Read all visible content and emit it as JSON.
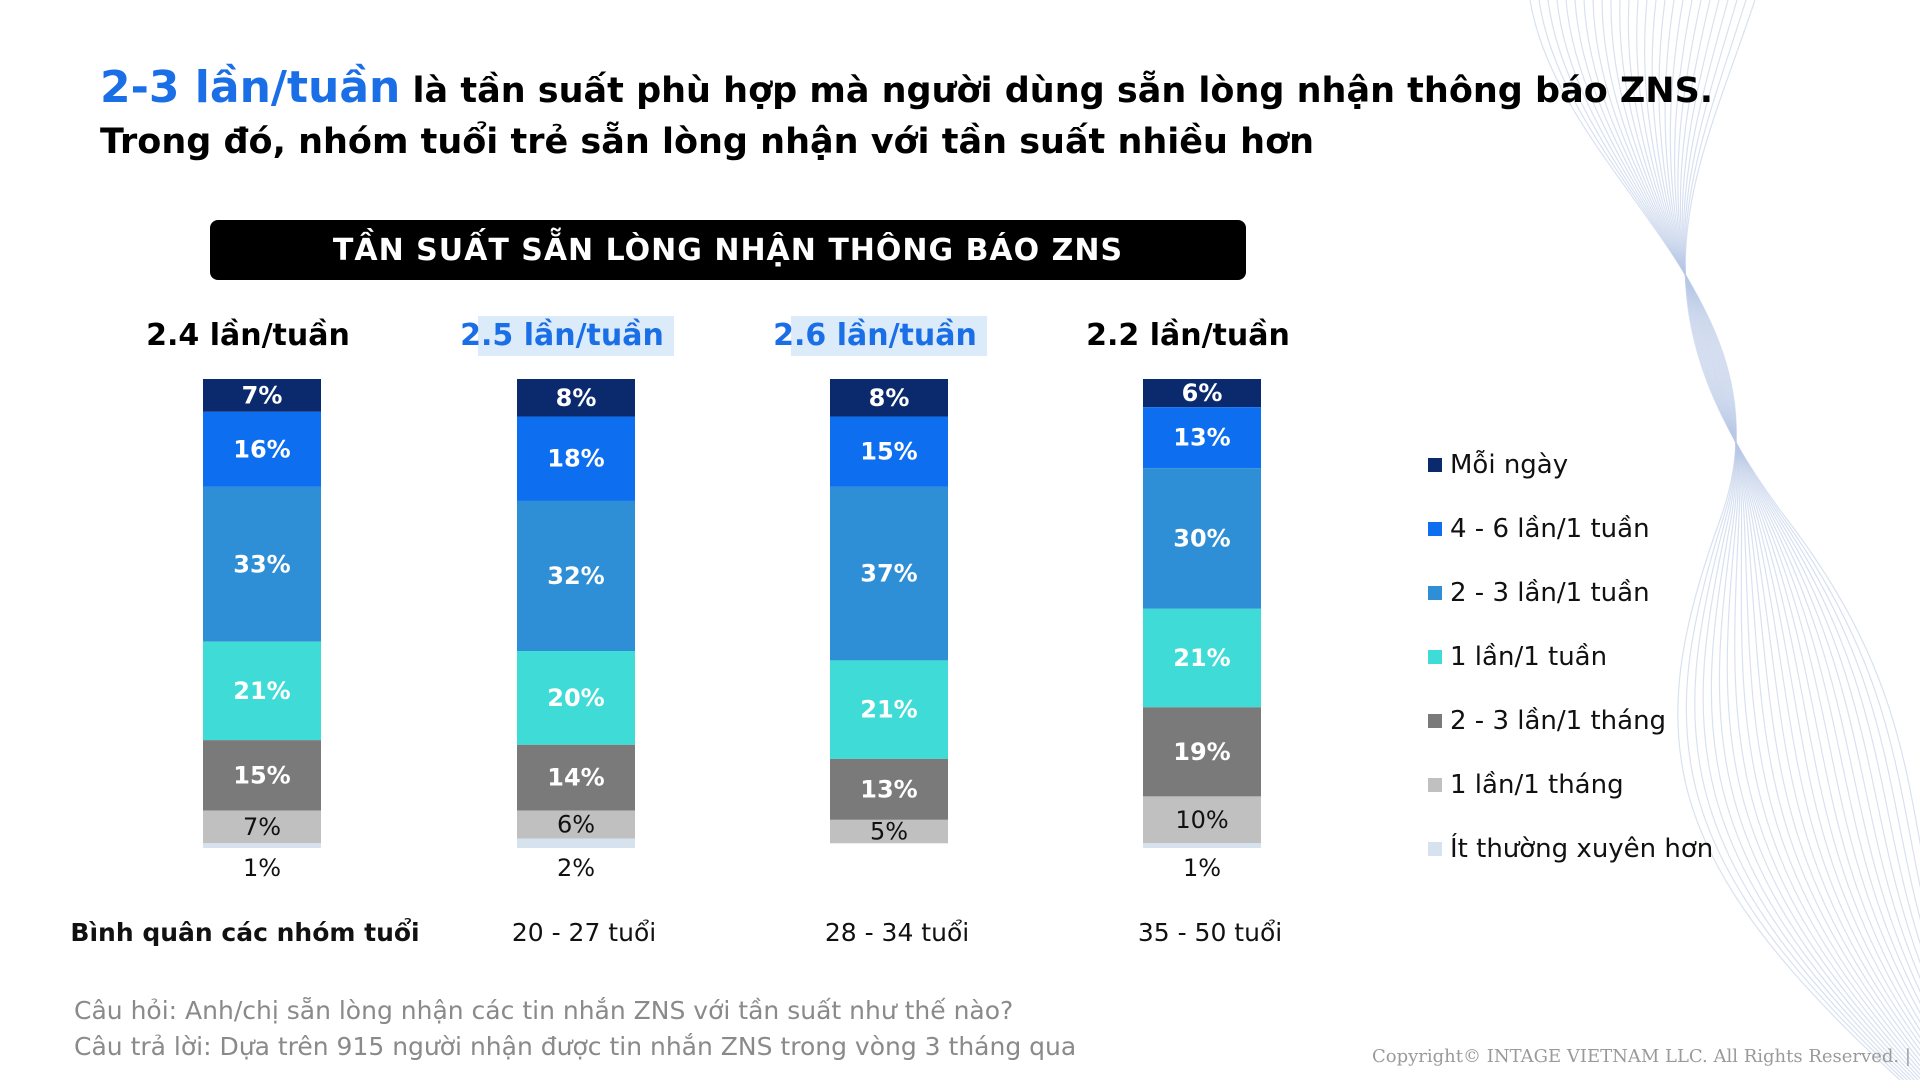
{
  "header": {
    "highlight": "2-3 lần/tuần",
    "line1_rest": " là tần suất phù hợp mà người dùng sẵn lòng nhận thông báo ZNS.",
    "line2": "Trong đó, nhóm tuổi trẻ sẵn lòng nhận với tần suất nhiều hơn"
  },
  "colors": {
    "highlight_text": "#1a6ee6",
    "highlight_bg": "#dcebfa",
    "banner_bg": "#000000"
  },
  "chart_data": {
    "type": "bar",
    "stacked": true,
    "percent": true,
    "title": "TẦN SUẤT SẴN LÒNG NHẬN THÔNG BÁO ZNS",
    "categories": [
      "Bình quân các nhóm tuổi",
      "20 - 27 tuổi",
      "28 - 34 tuổi",
      "35 - 50 tuổi"
    ],
    "averages": [
      {
        "label": "2.4 lần/tuần",
        "highlighted": false
      },
      {
        "label": "2.5 lần/tuần",
        "highlighted": true
      },
      {
        "label": "2.6 lần/tuần",
        "highlighted": true
      },
      {
        "label": "2.2 lần/tuần",
        "highlighted": false
      }
    ],
    "series": [
      {
        "name": "Mỗi ngày",
        "color": "#0b2a6e",
        "values": [
          7,
          8,
          8,
          6
        ]
      },
      {
        "name": "4 - 6 lần/1 tuần",
        "color": "#0d6ef0",
        "values": [
          16,
          18,
          15,
          13
        ]
      },
      {
        "name": "2 - 3 lần/1 tuần",
        "color": "#2f8fd6",
        "values": [
          33,
          32,
          37,
          30
        ]
      },
      {
        "name": "1 lần/1 tuần",
        "color": "#3fdbd6",
        "values": [
          21,
          20,
          21,
          21
        ]
      },
      {
        "name": "2 - 3 lần/1 tháng",
        "color": "#7a7a7a",
        "values": [
          15,
          14,
          13,
          19
        ]
      },
      {
        "name": "1 lần/1 tháng",
        "color": "#c0c0c0",
        "values": [
          7,
          6,
          5,
          10
        ]
      },
      {
        "name": "Ít thường xuyên hơn",
        "color": "#d6e3ef",
        "values": [
          1,
          2,
          0,
          1
        ]
      }
    ],
    "ylim": [
      0,
      100
    ],
    "legend_position": "right"
  },
  "footnote": {
    "question": "Câu hỏi: Anh/chị sẵn lòng nhận các tin nhắn ZNS với tần suất như thế nào?",
    "answer": "Câu trả lời: Dựa trên 915 người nhận được tin nhắn ZNS trong vòng 3 tháng qua"
  },
  "copyright": "Copyright© INTAGE VIETNAM LLC. All Rights Reserved. |"
}
